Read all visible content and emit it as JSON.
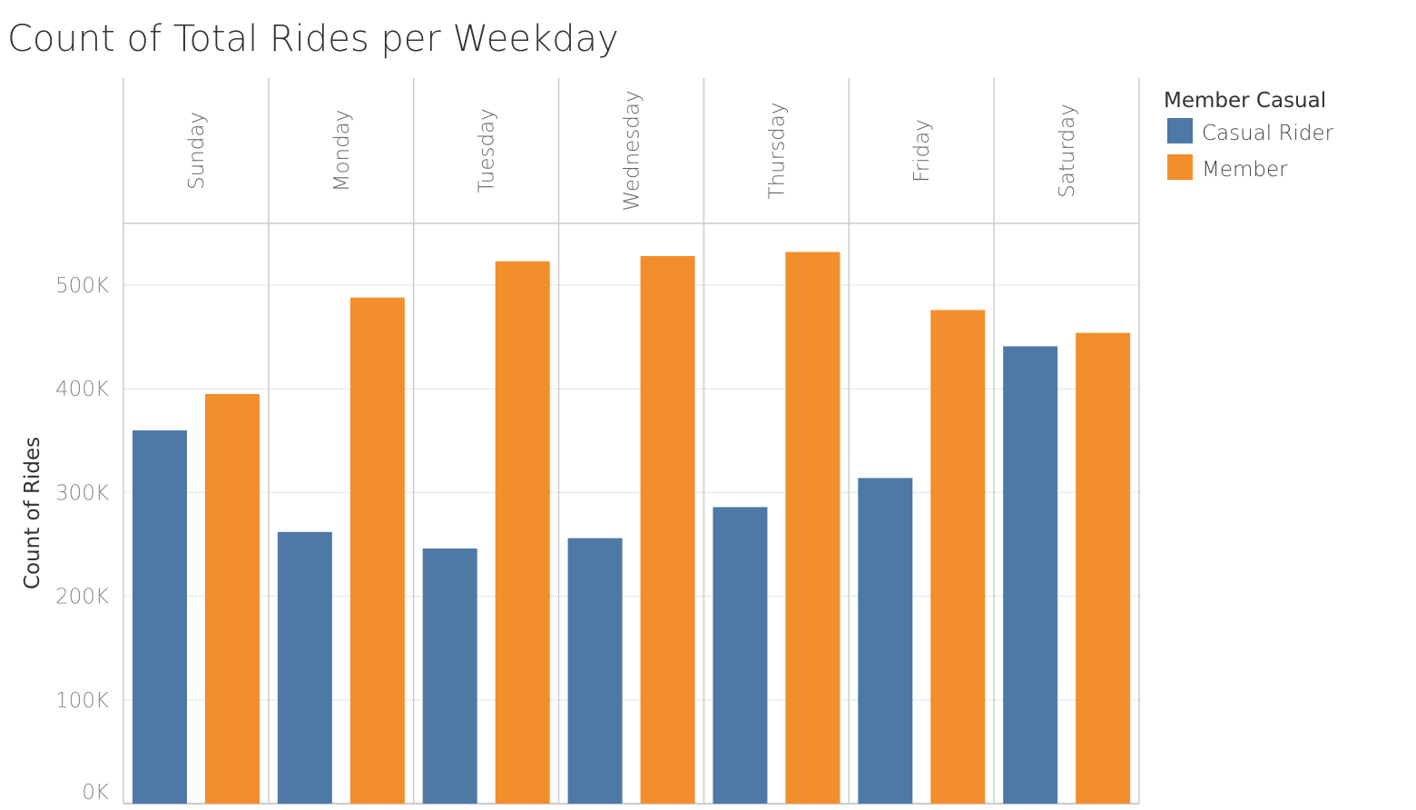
{
  "chart_data": {
    "type": "bar",
    "title": "Count of Total Rides per Weekday",
    "xlabel": "",
    "ylabel": "Count of Rides",
    "categories": [
      "Sunday",
      "Monday",
      "Tuesday",
      "Wednesday",
      "Thursday",
      "Friday",
      "Saturday"
    ],
    "series": [
      {
        "name": "Casual Rider",
        "values": [
          360000,
          262000,
          246000,
          256000,
          286000,
          314000,
          441000
        ],
        "color": "#4e79a7"
      },
      {
        "name": "Member",
        "values": [
          395000,
          488000,
          523000,
          528000,
          532000,
          476000,
          454000
        ],
        "color": "#f28e2b"
      }
    ],
    "ylim": [
      0,
      550000
    ],
    "yticks": [
      0,
      100000,
      200000,
      300000,
      400000,
      500000
    ],
    "ytick_labels": [
      "0K",
      "100K",
      "200K",
      "300K",
      "400K",
      "500K"
    ],
    "grid": true,
    "legend": {
      "title": "Member Casual",
      "placement": "top-right"
    }
  }
}
